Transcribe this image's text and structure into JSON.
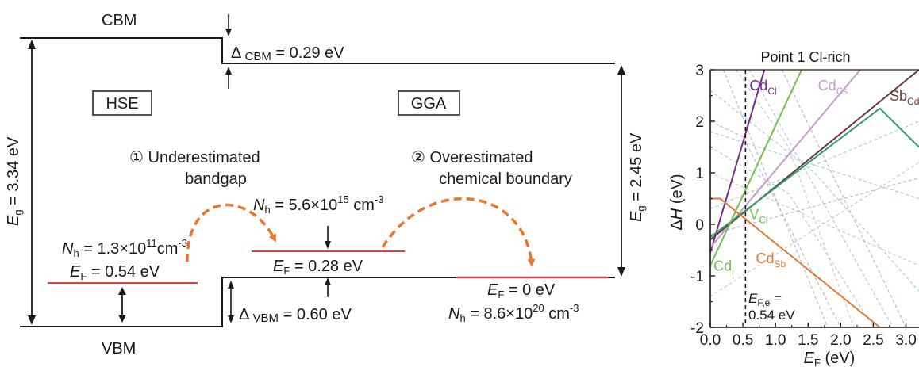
{
  "colors": {
    "ink": "#1a1a1a",
    "fermi_red": "#d64541",
    "arrow_orange": "#e8772e",
    "cdcl": "#7a2a8c",
    "cdcs": "#c79bd2",
    "sbcd": "#6b3a3a",
    "green_dark": "#2e9e6e",
    "green_light": "#6fc24a",
    "cdsb": "#e07a30"
  },
  "diagram": {
    "cbm": "CBM",
    "vbm": "VBM",
    "hse": "HSE",
    "gga": "GGA",
    "eg_left": {
      "sym": "E",
      "sub": "g",
      "rest": " = 3.34 eV"
    },
    "eg_right": {
      "sym": "E",
      "sub": "g",
      "rest": " = 2.45 eV"
    },
    "dcbm": {
      "pre": "Δ",
      "sub": " CBM",
      "rest": " = 0.29 eV"
    },
    "dvbm": {
      "pre": "Δ",
      "sub": " VBM",
      "rest": " = 0.60 eV"
    },
    "step1": {
      "num": "①",
      "line1": " Underestimated",
      "line2": "bandgap"
    },
    "step2": {
      "num": "②",
      "line1": " Overestimated",
      "line2": "chemical boundary"
    },
    "nh_left": {
      "sym": "N",
      "sub": "h",
      "pre": " = 1.3×10",
      "exp": "11",
      "unit": "cm",
      "uexp": "-3"
    },
    "nh_mid": {
      "sym": "N",
      "sub": "h",
      "pre": " = 5.6×10",
      "exp": "15",
      "unit": " cm",
      "uexp": "-3"
    },
    "nh_right": {
      "sym": "N",
      "sub": "h",
      "pre": " = 8.6×10",
      "exp": "20",
      "unit": " cm",
      "uexp": "-3"
    },
    "ef_left": {
      "sym": "E",
      "sub": "F",
      "rest": " = 0.54 eV"
    },
    "ef_mid": {
      "sym": "E",
      "sub": "F",
      "rest": " = 0.28 eV"
    },
    "ef_right": {
      "sym": "E",
      "sub": "F",
      "rest": " = 0 eV"
    }
  },
  "chart_data": {
    "type": "line",
    "title": "Point 1 Cl-rich",
    "xlabel": {
      "sym": "E",
      "sub": "F",
      "rest": " (eV)"
    },
    "ylabel": {
      "pre": "Δ",
      "sym": "H",
      "rest": " (eV)"
    },
    "xlim": [
      0,
      3.2
    ],
    "ylim": [
      -2,
      3
    ],
    "xticks": [
      "0.0",
      "0.5",
      "1.0",
      "1.5",
      "2.0",
      "2.5",
      "3.0"
    ],
    "yticks": [
      "-2",
      "-1",
      "0",
      "1",
      "2",
      "3"
    ],
    "xtick_values": [
      0,
      0.5,
      1.0,
      1.5,
      2.0,
      2.5,
      3.0
    ],
    "ytick_values": [
      -2,
      -1,
      0,
      1,
      2,
      3
    ],
    "fermi_marker": {
      "x": 0.54,
      "label_sym": "E",
      "label_sub": "F,e",
      "label_rest": " =",
      "label_value": "0.54 eV"
    },
    "series": [
      {
        "name": "CdCl",
        "color": "#7a2a8c",
        "points": [
          [
            0.0,
            -0.55
          ],
          [
            0.83,
            3.0
          ]
        ]
      },
      {
        "name": "CdCs",
        "color": "#c79bd2",
        "points": [
          [
            0.0,
            -0.45
          ],
          [
            2.3,
            3.0
          ]
        ]
      },
      {
        "name": "SbCd",
        "color": "#6b3a3a",
        "points": [
          [
            0.0,
            -0.3
          ],
          [
            3.2,
            3.0
          ]
        ]
      },
      {
        "name": "VCl",
        "color": "#2e9e6e",
        "points": [
          [
            0.0,
            -0.25
          ],
          [
            2.6,
            2.25
          ],
          [
            3.2,
            1.5
          ]
        ]
      },
      {
        "name": "Cdi",
        "color": "#6fc24a",
        "points": [
          [
            0.0,
            -0.8
          ],
          [
            1.4,
            3.0
          ]
        ]
      },
      {
        "name": "CdSb",
        "color": "#e07a30",
        "points": [
          [
            0.0,
            0.5
          ],
          [
            0.15,
            0.5
          ],
          [
            2.6,
            -2.0
          ]
        ]
      }
    ],
    "background_series": [
      {
        "color": "#c9a9d4",
        "points": [
          [
            0.0,
            2.0
          ],
          [
            0.5,
            1.7
          ],
          [
            2.0,
            -2.0
          ]
        ]
      },
      {
        "color": "#a8c8e0",
        "points": [
          [
            0.0,
            1.5
          ],
          [
            1.2,
            0.6
          ],
          [
            2.5,
            -2.0
          ]
        ]
      },
      {
        "color": "#c9a9d4",
        "points": [
          [
            0.2,
            3.0
          ],
          [
            1.1,
            0.2
          ],
          [
            1.8,
            -2.0
          ]
        ]
      },
      {
        "color": "#a8c8e0",
        "points": [
          [
            0.0,
            0.3
          ],
          [
            3.2,
            2.0
          ]
        ]
      },
      {
        "color": "#c8c8c8",
        "points": [
          [
            0.0,
            1.0
          ],
          [
            3.2,
            -0.8
          ]
        ]
      },
      {
        "color": "#a8c8e0",
        "points": [
          [
            0.6,
            3.0
          ],
          [
            2.8,
            -2.0
          ]
        ]
      },
      {
        "color": "#c9a9d4",
        "points": [
          [
            0.0,
            -0.2
          ],
          [
            3.2,
            0.9
          ]
        ]
      },
      {
        "color": "#c8c8c8",
        "points": [
          [
            0.4,
            3.0
          ],
          [
            1.2,
            1.5
          ],
          [
            2.2,
            -2.0
          ]
        ]
      },
      {
        "color": "#a8c8e0",
        "points": [
          [
            0.0,
            2.6
          ],
          [
            1.6,
            1.0
          ],
          [
            3.2,
            -1.3
          ]
        ]
      },
      {
        "color": "#c9a9d4",
        "points": [
          [
            1.1,
            3.0
          ],
          [
            3.0,
            -2.0
          ]
        ]
      },
      {
        "color": "#c8c8c8",
        "points": [
          [
            0.0,
            -1.4
          ],
          [
            3.2,
            1.2
          ]
        ]
      },
      {
        "color": "#a8c8e0",
        "points": [
          [
            0.0,
            1.8
          ],
          [
            3.2,
            0.5
          ]
        ]
      }
    ],
    "line_labels": [
      {
        "name": "cdcl",
        "base": "Cd",
        "sub": "Cl",
        "color": "#7a2a8c",
        "x": 0.6,
        "y": 2.6
      },
      {
        "name": "cdcs",
        "base": "Cd",
        "sub": "Cs",
        "color": "#c79bd2",
        "x": 1.65,
        "y": 2.6
      },
      {
        "name": "sbcd",
        "base": "Sb",
        "sub": "Cd",
        "color": "#6b3a3a",
        "x": 2.75,
        "y": 2.4
      },
      {
        "name": "vcl",
        "base": "V",
        "sub": "Cl",
        "color": "#6fc24a",
        "x": 0.6,
        "y": 0.1
      },
      {
        "name": "cdi",
        "base": "Cd",
        "sub": "i",
        "color": "#6fc24a",
        "x": 0.05,
        "y": -0.9
      },
      {
        "name": "cdsb",
        "base": "Cd",
        "sub": "Sb",
        "color": "#e07a30",
        "x": 0.7,
        "y": -0.75
      }
    ]
  }
}
